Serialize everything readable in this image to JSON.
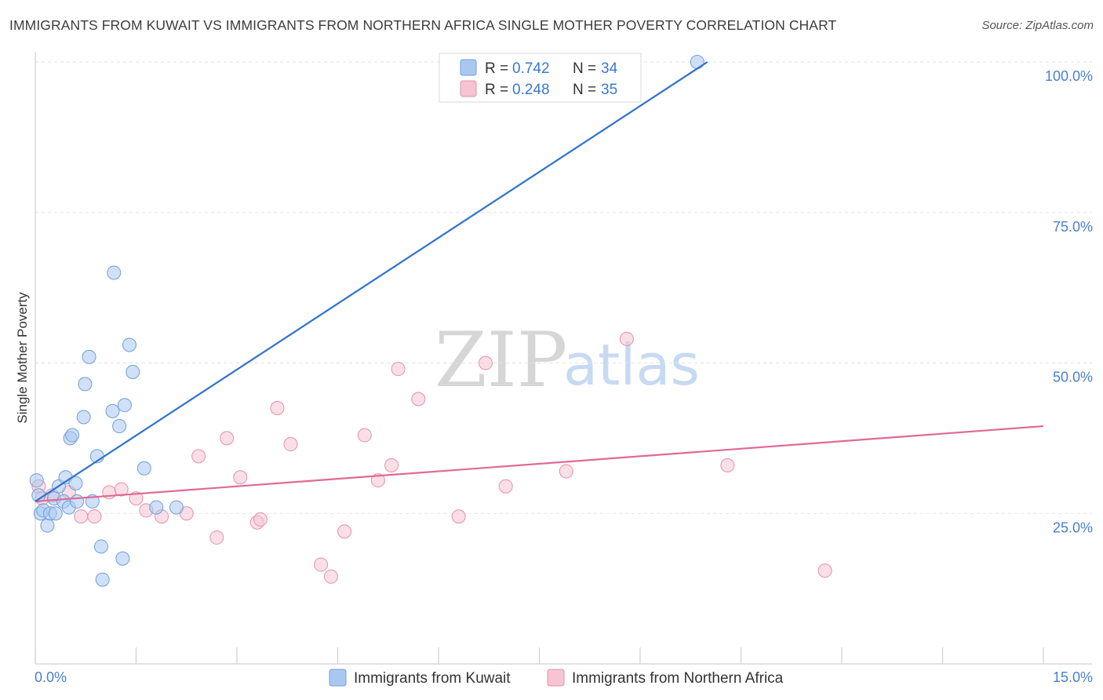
{
  "title": "IMMIGRANTS FROM KUWAIT VS IMMIGRANTS FROM NORTHERN AFRICA SINGLE MOTHER POVERTY CORRELATION CHART",
  "source": "Source: ZipAtlas.com",
  "watermark": {
    "zip": "ZIP",
    "atlas": "atlas"
  },
  "colors": {
    "blue_fill": "#a9c8f0",
    "blue_stroke": "#6f9fdc",
    "blue_line": "#2f72cc",
    "pink_fill": "#f6c4d3",
    "pink_stroke": "#e391ad",
    "pink_line": "#e06a95",
    "axis_text": "#4a7fd0",
    "grid": "#e3e3e3"
  },
  "legend": {
    "series1": {
      "r_label": "R =",
      "r_value": "0.742",
      "n_label": "N =",
      "n_value": "34"
    },
    "series2": {
      "r_label": "R =",
      "r_value": "0.248",
      "n_label": "N =",
      "n_value": "35"
    }
  },
  "chart_data": {
    "type": "scatter",
    "title": "IMMIGRANTS FROM KUWAIT VS IMMIGRANTS FROM NORTHERN AFRICA SINGLE MOTHER POVERTY CORRELATION CHART",
    "xlabel": "",
    "ylabel": "Single Mother Poverty",
    "xlim": [
      0,
      15
    ],
    "ylim": [
      0,
      100
    ],
    "x_tick_labels": [
      "0.0%",
      "15.0%"
    ],
    "y_ticks": [
      25,
      50,
      75,
      100
    ],
    "y_tick_labels": [
      "25.0%",
      "50.0%",
      "75.0%",
      "100.0%"
    ],
    "grid": true,
    "series": [
      {
        "name": "Immigrants from Kuwait",
        "points": [
          [
            0.02,
            30.5
          ],
          [
            0.05,
            28.0
          ],
          [
            0.08,
            25.0
          ],
          [
            0.12,
            25.5
          ],
          [
            0.18,
            23.0
          ],
          [
            0.22,
            25.0
          ],
          [
            0.28,
            27.5
          ],
          [
            0.3,
            25.0
          ],
          [
            0.35,
            29.5
          ],
          [
            0.42,
            27.0
          ],
          [
            0.45,
            31.0
          ],
          [
            0.5,
            26.0
          ],
          [
            0.52,
            37.5
          ],
          [
            0.55,
            38.0
          ],
          [
            0.6,
            30.0
          ],
          [
            0.62,
            27.0
          ],
          [
            0.72,
            41.0
          ],
          [
            0.74,
            46.5
          ],
          [
            0.8,
            51.0
          ],
          [
            0.85,
            27.0
          ],
          [
            0.92,
            34.5
          ],
          [
            0.98,
            19.5
          ],
          [
            1.0,
            14.0
          ],
          [
            1.15,
            42.0
          ],
          [
            1.17,
            65.0
          ],
          [
            1.25,
            39.5
          ],
          [
            1.3,
            17.5
          ],
          [
            1.33,
            43.0
          ],
          [
            1.4,
            53.0
          ],
          [
            1.45,
            48.5
          ],
          [
            1.62,
            32.5
          ],
          [
            1.8,
            26.0
          ],
          [
            2.1,
            26.0
          ],
          [
            9.85,
            100.0
          ]
        ],
        "trend": {
          "x": [
            0.0,
            10.0
          ],
          "y": [
            27.0,
            100.0
          ]
        }
      },
      {
        "name": "Immigrants from Northern Africa",
        "points": [
          [
            0.05,
            29.5
          ],
          [
            0.25,
            28.0
          ],
          [
            0.5,
            28.5
          ],
          [
            0.68,
            24.5
          ],
          [
            0.88,
            24.5
          ],
          [
            1.1,
            28.5
          ],
          [
            1.28,
            29.0
          ],
          [
            1.5,
            27.5
          ],
          [
            1.65,
            25.5
          ],
          [
            1.88,
            24.5
          ],
          [
            2.25,
            25.0
          ],
          [
            2.43,
            34.5
          ],
          [
            2.7,
            21.0
          ],
          [
            2.85,
            37.5
          ],
          [
            3.05,
            31.0
          ],
          [
            3.3,
            23.5
          ],
          [
            3.35,
            24.0
          ],
          [
            3.6,
            42.5
          ],
          [
            3.8,
            36.5
          ],
          [
            4.25,
            16.5
          ],
          [
            4.4,
            14.5
          ],
          [
            4.6,
            22.0
          ],
          [
            4.9,
            38.0
          ],
          [
            5.1,
            30.5
          ],
          [
            5.3,
            33.0
          ],
          [
            5.4,
            49.0
          ],
          [
            5.7,
            44.0
          ],
          [
            6.3,
            24.5
          ],
          [
            6.7,
            50.0
          ],
          [
            7.0,
            29.5
          ],
          [
            7.9,
            32.0
          ],
          [
            8.8,
            54.0
          ],
          [
            10.3,
            33.0
          ],
          [
            11.75,
            15.5
          ],
          [
            0.1,
            27.5
          ]
        ],
        "trend": {
          "x": [
            0.0,
            15.0
          ],
          "y": [
            27.0,
            39.5
          ]
        }
      }
    ]
  }
}
